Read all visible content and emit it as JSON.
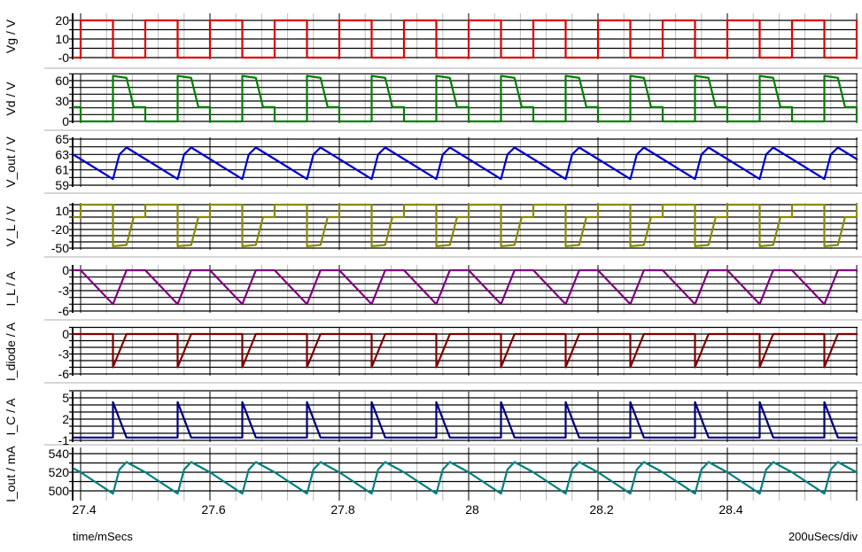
{
  "chart_data": {
    "type": "line",
    "xlabel": "time/mSecs",
    "x_scale_label": "200uSecs/div",
    "xlim": [
      27.388,
      28.601
    ],
    "x_ticks": [
      27.4,
      27.6,
      27.8,
      28,
      28.2,
      28.4
    ],
    "x_tick_labels": [
      "27.4",
      "27.6",
      "27.8",
      "28",
      "28.2",
      "28.4"
    ],
    "grid": true,
    "period_us": 100,
    "start_ms": 27.4,
    "note_waveform_format": "each series repeats every period; points are [time offset in µs within period, value]",
    "series": [
      {
        "name": "Vg / V",
        "color": "#e00000",
        "ticks": [
          0,
          10,
          20
        ],
        "tick_labels": [
          "-0",
          "10",
          "20"
        ],
        "minor_step": 5,
        "points": [
          [
            0,
            0
          ],
          [
            0,
            20
          ],
          [
            50,
            20
          ],
          [
            50,
            0
          ],
          [
            100,
            0
          ]
        ]
      },
      {
        "name": "Vd / V",
        "color": "#008000",
        "ticks": [
          0,
          30,
          60
        ],
        "tick_labels": [
          "0",
          "30",
          "60"
        ],
        "minor_step": 10,
        "points": [
          [
            0,
            0
          ],
          [
            50,
            0
          ],
          [
            50,
            67
          ],
          [
            71,
            64
          ],
          [
            82,
            21
          ],
          [
            100,
            21
          ],
          [
            100,
            0
          ]
        ]
      },
      {
        "name": "V_out / V",
        "color": "#0000d0",
        "ticks": [
          59,
          61,
          63,
          65
        ],
        "tick_labels": [
          "59",
          "61",
          "63",
          "65"
        ],
        "minor_step": 1,
        "points": [
          [
            0,
            62.4
          ],
          [
            50,
            59.8
          ],
          [
            60,
            63
          ],
          [
            71,
            63.9
          ],
          [
            100,
            62.4
          ]
        ]
      },
      {
        "name": "V_L / V",
        "color": "#8a8a00",
        "ticks": [
          -50,
          -20,
          10
        ],
        "tick_labels": [
          "-50",
          "-20",
          "10"
        ],
        "minor_step": 10,
        "points": [
          [
            0,
            0
          ],
          [
            0,
            20
          ],
          [
            50,
            20
          ],
          [
            50,
            -47
          ],
          [
            71,
            -45
          ],
          [
            82,
            0
          ],
          [
            100,
            0
          ]
        ]
      },
      {
        "name": "I_L / A",
        "color": "#800080",
        "ticks": [
          -6,
          -3,
          0
        ],
        "tick_labels": [
          "-6",
          "-3",
          "0"
        ],
        "minor_step": 1,
        "points": [
          [
            0,
            0
          ],
          [
            50,
            -5
          ],
          [
            71,
            0
          ],
          [
            100,
            0
          ]
        ]
      },
      {
        "name": "I_diode / A",
        "color": "#800000",
        "ticks": [
          -6,
          -3,
          0
        ],
        "tick_labels": [
          "-6",
          "-3",
          "0"
        ],
        "minor_step": 1,
        "points": [
          [
            0,
            0
          ],
          [
            50,
            0
          ],
          [
            50,
            -5
          ],
          [
            71,
            0
          ],
          [
            100,
            0
          ]
        ]
      },
      {
        "name": "I_C / A",
        "color": "#000080",
        "ticks": [
          -1,
          2,
          5
        ],
        "tick_labels": [
          "-1",
          "2",
          "5"
        ],
        "minor_step": 1,
        "points": [
          [
            0,
            -0.6
          ],
          [
            50,
            -0.6
          ],
          [
            50,
            4.4
          ],
          [
            71,
            -0.6
          ],
          [
            100,
            -0.6
          ]
        ]
      },
      {
        "name": "I_out / mA",
        "color": "#008080",
        "ticks": [
          500,
          520,
          540
        ],
        "tick_labels": [
          "500",
          "520",
          "540"
        ],
        "minor_step": 10,
        "points": [
          [
            0,
            520
          ],
          [
            50,
            497
          ],
          [
            60,
            523
          ],
          [
            71,
            531
          ],
          [
            100,
            520
          ]
        ]
      }
    ]
  }
}
